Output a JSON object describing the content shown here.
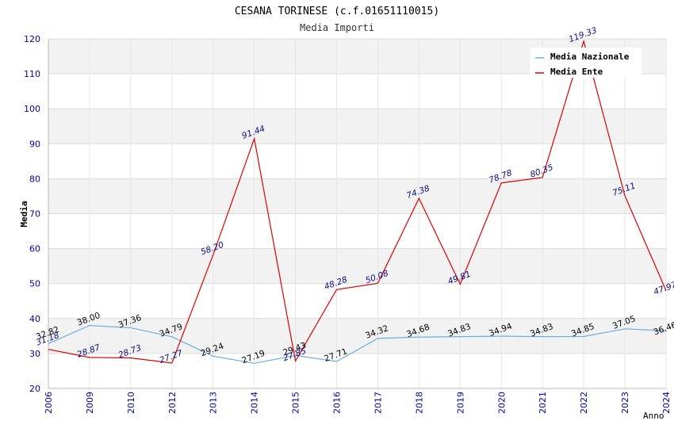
{
  "chart_data": {
    "type": "line",
    "title": "CESANA TORINESE (c.f.01651110015)",
    "subtitle": "Media Importi",
    "xlabel": "Anno",
    "ylabel": "Media",
    "ylim": [
      20,
      120
    ],
    "yticks": [
      "20",
      "30",
      "40",
      "50",
      "60",
      "70",
      "80",
      "90",
      "100",
      "110",
      "120"
    ],
    "categories": [
      "2006",
      "2009",
      "2010",
      "2012",
      "2013",
      "2014",
      "2015",
      "2016",
      "2017",
      "2018",
      "2019",
      "2020",
      "2021",
      "2022",
      "2023",
      "2024"
    ],
    "grid": true,
    "legend_position": "top-right",
    "series": [
      {
        "name": "Media Nazionale",
        "color": "#6aaee8",
        "values": [
          32.82,
          38.0,
          37.36,
          34.79,
          29.24,
          27.19,
          29.43,
          27.71,
          34.32,
          34.68,
          34.83,
          34.94,
          34.83,
          34.85,
          37.05,
          36.46
        ],
        "labels": [
          "32.82",
          "38.00",
          "37.36",
          "34.79",
          "29.24",
          "27.19",
          "29.43",
          "27.71",
          "34.32",
          "34.68",
          "34.83",
          "34.94",
          "34.83",
          "34.85",
          "37.05",
          "36.46"
        ]
      },
      {
        "name": "Media Ente",
        "color": "#dd0000",
        "values": [
          31.18,
          28.87,
          28.73,
          27.27,
          58.2,
          91.44,
          27.85,
          48.28,
          50.08,
          74.38,
          49.81,
          78.78,
          80.35,
          119.33,
          75.11,
          47.97
        ],
        "labels": [
          "31.18",
          "28.87",
          "28.73",
          "27.27",
          "58.20",
          "91.44",
          "27.85",
          "48.28",
          "50.08",
          "74.38",
          "49.81",
          "78.78",
          "80.35",
          "119.33",
          "75.11",
          "47.97"
        ]
      }
    ]
  }
}
